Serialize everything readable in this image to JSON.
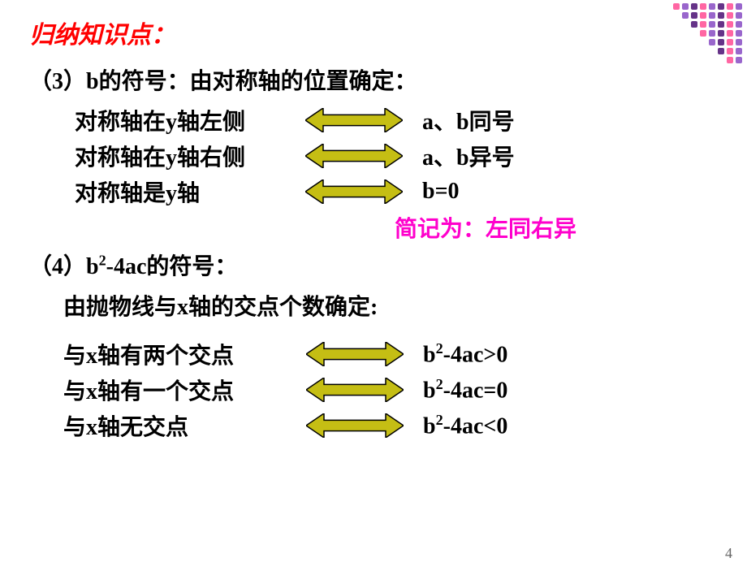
{
  "colors": {
    "title": "#ff0000",
    "heading": "#000000",
    "body": "#000000",
    "mnemonic": "#ff00cc",
    "arrow_fill": "#c5be14",
    "arrow_stroke": "#000000",
    "decor_pink": "#ff66a3",
    "decor_purple": "#9966cc",
    "decor_dark": "#663388",
    "page_bg": "#ffffff"
  },
  "typography": {
    "title_fontsize": 30,
    "heading_fontsize": 28,
    "body_fontsize": 28,
    "title_italic": true,
    "weight": "bold"
  },
  "title": "归纳知识点：",
  "section3": {
    "heading": "（3）b的符号：由对称轴的位置确定：",
    "rows": [
      {
        "left": "对称轴在y轴左侧",
        "right": "a、b同号"
      },
      {
        "left": "对称轴在y轴右侧",
        "right": "a、b异号"
      },
      {
        "left": "对称轴是y轴",
        "right": "b=0"
      }
    ],
    "mnemonic": "简记为：左同右异"
  },
  "section4": {
    "heading_prefix": "（4）b",
    "heading_suffix": "-4ac的符号：",
    "sub": "由抛物线与x轴的交点个数确定:",
    "rows": [
      {
        "left": "与x轴有两个交点",
        "rp": "b",
        "rs": "-4ac>0"
      },
      {
        "left": "与x轴有一个交点",
        "rp": "b",
        "rs": "-4ac=0"
      },
      {
        "left": "与x轴无交点",
        "rp": "b",
        "rs": "-4ac<0"
      }
    ]
  },
  "page_number": "4",
  "arrow": {
    "width": 120,
    "height": 30
  },
  "decor": {
    "rows": 7,
    "cols": 8,
    "dot_size": 8,
    "gap": 3
  }
}
